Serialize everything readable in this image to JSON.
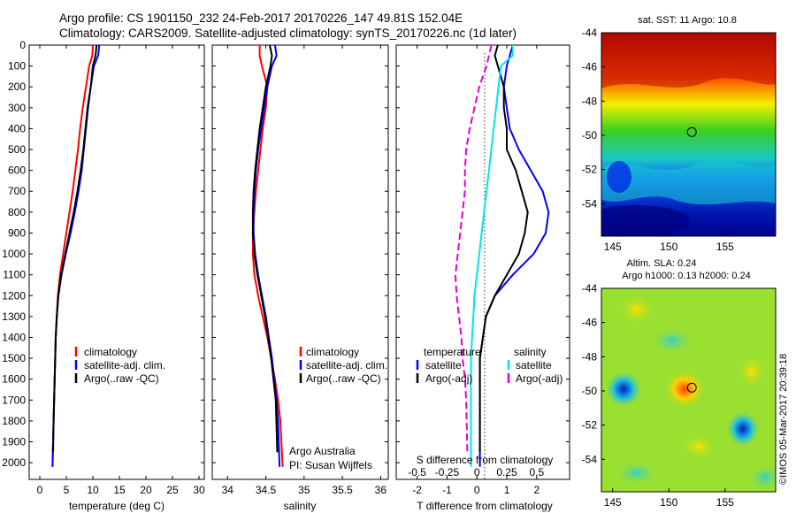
{
  "header": {
    "line1": "Argo profile: CS 1901150_232 24-Feb-2017 20170226_147 49.81S 152.04E",
    "line2": "Climatology: CARS2009. Satellite-adjusted climatology: synTS_20170226.nc (1d later)"
  },
  "colors": {
    "climatology": "#ff0000",
    "satellite": "#0000ff",
    "argo": "#000000",
    "cyan": "#00e5e5",
    "magenta": "#e000e0"
  },
  "chart_data": [
    {
      "type": "line",
      "xlabel": "temperature (deg C)",
      "ylabel": "",
      "xlim": [
        -2,
        31
      ],
      "ylim": [
        2080,
        0
      ],
      "xticks": [
        0,
        5,
        10,
        15,
        20,
        25,
        30
      ],
      "yticks": [
        0,
        100,
        200,
        300,
        400,
        500,
        600,
        700,
        800,
        900,
        1000,
        1100,
        1200,
        1300,
        1400,
        1500,
        1600,
        1700,
        1800,
        1900,
        2000
      ],
      "legend": [
        "climatology",
        "satellite-adj. clim.",
        "Argo(..raw -QC)"
      ],
      "series": [
        {
          "name": "climatology",
          "color": "#ff0000",
          "x": [
            10.0,
            9.9,
            9.3,
            8.7,
            8.1,
            7.6,
            7.2,
            6.7,
            6.2,
            5.6,
            5.0,
            4.4,
            3.8,
            3.4,
            3.2,
            3.0,
            2.9,
            2.8,
            2.7,
            2.6,
            2.5,
            2.4
          ],
          "y": [
            0,
            50,
            100,
            200,
            300,
            400,
            500,
            600,
            700,
            800,
            900,
            1000,
            1100,
            1200,
            1300,
            1400,
            1500,
            1600,
            1700,
            1800,
            1900,
            2020
          ]
        },
        {
          "name": "satellite-adj. clim.",
          "color": "#0000ff",
          "x": [
            11.2,
            11.0,
            10.2,
            9.6,
            9.1,
            8.7,
            8.3,
            7.9,
            7.3,
            6.6,
            5.8,
            4.9,
            4.1,
            3.5,
            3.2,
            3.0,
            2.9,
            2.8,
            2.7,
            2.6,
            2.5,
            2.4
          ],
          "y": [
            0,
            50,
            100,
            200,
            300,
            400,
            500,
            600,
            700,
            800,
            900,
            1000,
            1100,
            1200,
            1300,
            1400,
            1500,
            1600,
            1700,
            1800,
            1900,
            2020
          ]
        },
        {
          "name": "Argo(..raw -QC)",
          "color": "#000000",
          "x": [
            10.7,
            10.5,
            10.0,
            9.6,
            9.0,
            8.6,
            8.2,
            7.7,
            7.1,
            6.4,
            5.6,
            4.8,
            4.0,
            3.5,
            3.2,
            3.0,
            2.9,
            2.8,
            2.7,
            2.6,
            2.5
          ],
          "y": [
            0,
            50,
            100,
            200,
            300,
            400,
            500,
            600,
            700,
            800,
            900,
            1000,
            1100,
            1200,
            1300,
            1400,
            1500,
            1600,
            1700,
            1800,
            1950
          ]
        }
      ]
    },
    {
      "type": "line",
      "xlabel": "salinity",
      "ylabel": "",
      "xlim": [
        33.8,
        36.1
      ],
      "ylim": [
        2080,
        0
      ],
      "xticks": [
        34,
        34.5,
        35,
        35.5,
        36
      ],
      "xticklabels": [
        "34",
        "34.5",
        "35",
        "35.5",
        "36"
      ],
      "legend": [
        "climatology",
        "satellite-adj. clim.",
        "Argo(..raw -QC)"
      ],
      "annotation": [
        "Argo Australia",
        "PI: Susan Wijffels"
      ],
      "series": [
        {
          "name": "climatology",
          "color": "#ff0000",
          "x": [
            34.42,
            34.42,
            34.45,
            34.52,
            34.5,
            34.46,
            34.43,
            34.4,
            34.37,
            34.35,
            34.33,
            34.33,
            34.35,
            34.4,
            34.46,
            34.52,
            34.57,
            34.62,
            34.66,
            34.69,
            34.72
          ],
          "y": [
            0,
            50,
            100,
            200,
            300,
            400,
            500,
            600,
            700,
            800,
            900,
            1000,
            1100,
            1200,
            1300,
            1400,
            1500,
            1600,
            1700,
            1800,
            2020
          ]
        },
        {
          "name": "satellite-adj. clim.",
          "color": "#0000ff",
          "x": [
            34.62,
            34.64,
            34.58,
            34.52,
            34.48,
            34.44,
            34.4,
            34.37,
            34.35,
            34.34,
            34.34,
            34.36,
            34.4,
            34.45,
            34.5,
            34.54,
            34.58,
            34.61,
            34.64,
            34.66,
            34.68
          ],
          "y": [
            0,
            50,
            100,
            200,
            300,
            400,
            500,
            600,
            700,
            800,
            900,
            1000,
            1100,
            1200,
            1300,
            1400,
            1500,
            1600,
            1700,
            1800,
            2020
          ]
        },
        {
          "name": "Argo(..raw -QC)",
          "color": "#000000",
          "x": [
            34.55,
            34.58,
            34.56,
            34.5,
            34.46,
            34.42,
            34.39,
            34.36,
            34.34,
            34.33,
            34.33,
            34.35,
            34.39,
            34.44,
            34.49,
            34.53,
            34.57,
            34.6,
            34.63,
            34.65
          ],
          "y": [
            0,
            50,
            100,
            200,
            300,
            400,
            500,
            600,
            700,
            800,
            900,
            1000,
            1100,
            1200,
            1300,
            1400,
            1500,
            1600,
            1700,
            1950
          ]
        }
      ]
    },
    {
      "type": "line",
      "xlabel": "T difference from climatology",
      "xlabel_top": "S difference from climatology",
      "xlim": [
        -2.7,
        3.1
      ],
      "ylim": [
        2080,
        0
      ],
      "xticks": [
        -2,
        -1,
        0,
        1,
        2
      ],
      "xticks_salinity": [
        -0.5,
        -0.25,
        0,
        0.25,
        0.5
      ],
      "xticklabels_salinity": [
        "-0.5",
        "-0.25",
        "0",
        "0.25",
        "0.5"
      ],
      "legend_temperature": {
        "title": "temperature",
        "items": [
          "satellite",
          "Argo(-adj)"
        ]
      },
      "legend_salinity": {
        "title": "salinity",
        "items": [
          "satellite",
          "Argo(-adj)"
        ]
      },
      "series": [
        {
          "name": "temperature satellite",
          "color": "#0000ff",
          "x": [
            1.2,
            1.1,
            1.0,
            0.9,
            1.0,
            1.1,
            1.4,
            1.8,
            2.2,
            2.4,
            2.3,
            1.9,
            1.2,
            0.6,
            0.3,
            0.2,
            0.1,
            0.1,
            0.1,
            0.1,
            0.1
          ],
          "y": [
            0,
            50,
            100,
            200,
            300,
            400,
            500,
            600,
            700,
            800,
            900,
            1000,
            1100,
            1200,
            1300,
            1400,
            1500,
            1600,
            1700,
            1800,
            2020
          ]
        },
        {
          "name": "temperature Argo(-adj)",
          "color": "#000000",
          "x": [
            0.7,
            0.6,
            0.7,
            0.9,
            0.9,
            1.0,
            1.0,
            1.3,
            1.5,
            1.7,
            1.6,
            1.4,
            1.0,
            0.6,
            0.3,
            0.2,
            0.1,
            0.1,
            0.1,
            0.1
          ],
          "y": [
            0,
            50,
            100,
            200,
            300,
            400,
            500,
            600,
            700,
            800,
            900,
            1000,
            1100,
            1200,
            1300,
            1400,
            1500,
            1600,
            1700,
            1950
          ]
        },
        {
          "name": "salinity satellite",
          "color": "#00e5e5",
          "x": [
            0.3,
            0.3,
            0.2,
            0.18,
            0.16,
            0.14,
            0.12,
            0.1,
            0.08,
            0.06,
            0.04,
            0.02,
            0.0,
            -0.02,
            -0.03,
            -0.04,
            -0.05,
            -0.05,
            -0.05,
            -0.05,
            -0.05
          ],
          "y": [
            0,
            50,
            100,
            200,
            300,
            400,
            500,
            600,
            700,
            800,
            900,
            1000,
            1100,
            1200,
            1300,
            1400,
            1500,
            1600,
            1700,
            1800,
            2020
          ]
        },
        {
          "name": "salinity Argo(-adj)",
          "color": "#e000e0",
          "x": [
            0.12,
            0.1,
            0.08,
            0.02,
            -0.02,
            -0.06,
            -0.09,
            -0.1,
            -0.1,
            -0.12,
            -0.14,
            -0.16,
            -0.18,
            -0.17,
            -0.15,
            -0.13,
            -0.12,
            -0.1,
            -0.09,
            -0.08
          ],
          "y": [
            0,
            50,
            100,
            200,
            300,
            400,
            500,
            600,
            700,
            800,
            900,
            1000,
            1100,
            1200,
            1300,
            1400,
            1500,
            1600,
            1700,
            1950
          ]
        }
      ]
    },
    {
      "type": "heatmap",
      "title": "sat. SST: 11  Argo: 10.8",
      "xlim": [
        144,
        159.5
      ],
      "ylim": [
        -55.9,
        -44
      ],
      "xticks": [
        145,
        150,
        155
      ],
      "yticks": [
        -44,
        -46,
        -48,
        -50,
        -52,
        -54
      ],
      "marker": {
        "lon": 152.04,
        "lat": -49.81
      }
    },
    {
      "type": "heatmap",
      "title": "Altim. SLA: 0.24",
      "subtitle": "Argo h1000: 0.13 h2000: 0.24",
      "xlim": [
        144,
        159.5
      ],
      "ylim": [
        -55.9,
        -44
      ],
      "xticks": [
        145,
        150,
        155
      ],
      "yticks": [
        -44,
        -46,
        -48,
        -50,
        -52,
        -54
      ],
      "marker": {
        "lon": 152.04,
        "lat": -49.81
      }
    }
  ],
  "credit": "©IMOS 05-Mar-2017 20:39:18"
}
